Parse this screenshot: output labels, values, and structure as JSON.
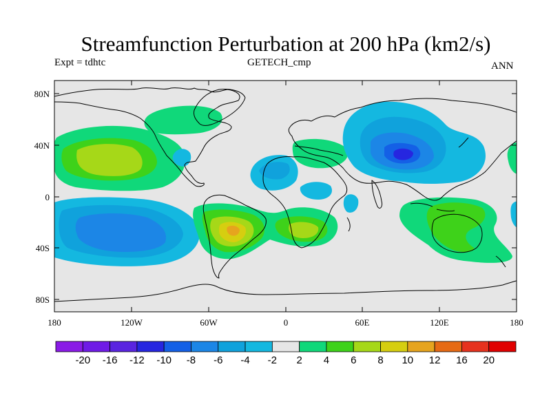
{
  "header": {
    "title": "Streamfunction Perturbation at 200 hPa (km2/s)",
    "left_label": "Expt = tdhtc",
    "center_label": "GETECH_cmp",
    "right_label": "ANN"
  },
  "map": {
    "lat_ticks": [
      "80N",
      "40N",
      "0",
      "40S",
      "80S"
    ],
    "lon_ticks": [
      "180",
      "120W",
      "60W",
      "0",
      "60E",
      "120E",
      "180"
    ]
  },
  "colorbar": {
    "labels": [
      "-20",
      "-16",
      "-12",
      "-10",
      "-8",
      "-6",
      "-4",
      "-2",
      "2",
      "4",
      "6",
      "8",
      "10",
      "12",
      "16",
      "20"
    ],
    "colors": [
      "#8a1be6",
      "#6f1be6",
      "#5a24e0",
      "#2626e0",
      "#1460e6",
      "#1c86e6",
      "#10a2dc",
      "#14b8e0",
      "#e6e6e6",
      "#10d87a",
      "#3ed21a",
      "#a6d818",
      "#d6ce10",
      "#e6a41e",
      "#e66a14",
      "#e6321e",
      "#e00000"
    ]
  },
  "chart_data": {
    "type": "heatmap",
    "title": "Streamfunction Perturbation at 200 hPa (km2/s)",
    "xlabel": "",
    "ylabel": "",
    "xlim": [
      -180,
      180
    ],
    "ylim": [
      -90,
      90
    ],
    "contour_levels": [
      -20,
      -16,
      -12,
      -10,
      -8,
      -6,
      -4,
      -2,
      2,
      4,
      6,
      8,
      10,
      12,
      16,
      20
    ],
    "notable_features": [
      {
        "name": "north-pacific-positive",
        "lon": -135,
        "lat": 35,
        "peak_level": 6
      },
      {
        "name": "south-pacific-negative",
        "lon": -125,
        "lat": -25,
        "peak_level": -8
      },
      {
        "name": "south-america-positive",
        "lon": -40,
        "lat": -25,
        "peak_level": 10
      },
      {
        "name": "south-atlantic-positive",
        "lon": 10,
        "lat": -25,
        "peak_level": 6
      },
      {
        "name": "asia-negative",
        "lon": 85,
        "lat": 30,
        "peak_level": -10
      },
      {
        "name": "australia-positive",
        "lon": 120,
        "lat": -25,
        "peak_level": 6
      },
      {
        "name": "europe-positive",
        "lon": 20,
        "lat": 38,
        "peak_level": 4
      },
      {
        "name": "north-atlantic-negative",
        "lon": -15,
        "lat": 20,
        "peak_level": -4
      }
    ]
  }
}
